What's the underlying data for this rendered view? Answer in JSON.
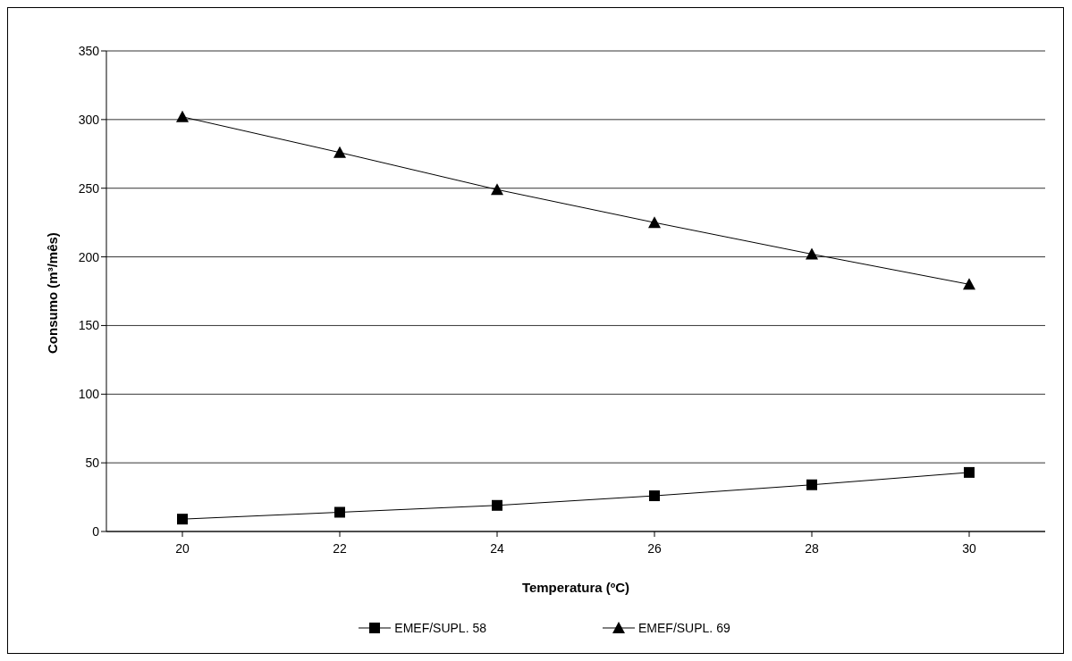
{
  "chart_data": {
    "type": "line",
    "xlabel": "Temperatura (ºC)",
    "ylabel": "Consumo (m³/mês)",
    "categories": [
      "20",
      "22",
      "24",
      "26",
      "28",
      "30"
    ],
    "series": [
      {
        "name": "EMEF/SUPL. 58",
        "color": "#000000",
        "marker": "square",
        "values": [
          9,
          14,
          19,
          26,
          34,
          43
        ]
      },
      {
        "name": "EMEF/SUPL. 69",
        "color": "#000000",
        "marker": "triangle",
        "values": [
          302,
          276,
          249,
          225,
          202,
          180
        ]
      }
    ],
    "ylim": [
      0,
      350
    ],
    "yticks": [
      0,
      50,
      100,
      150,
      200,
      250,
      300,
      350
    ],
    "grid": "y",
    "legend": "bottom",
    "line_style": "solid"
  }
}
